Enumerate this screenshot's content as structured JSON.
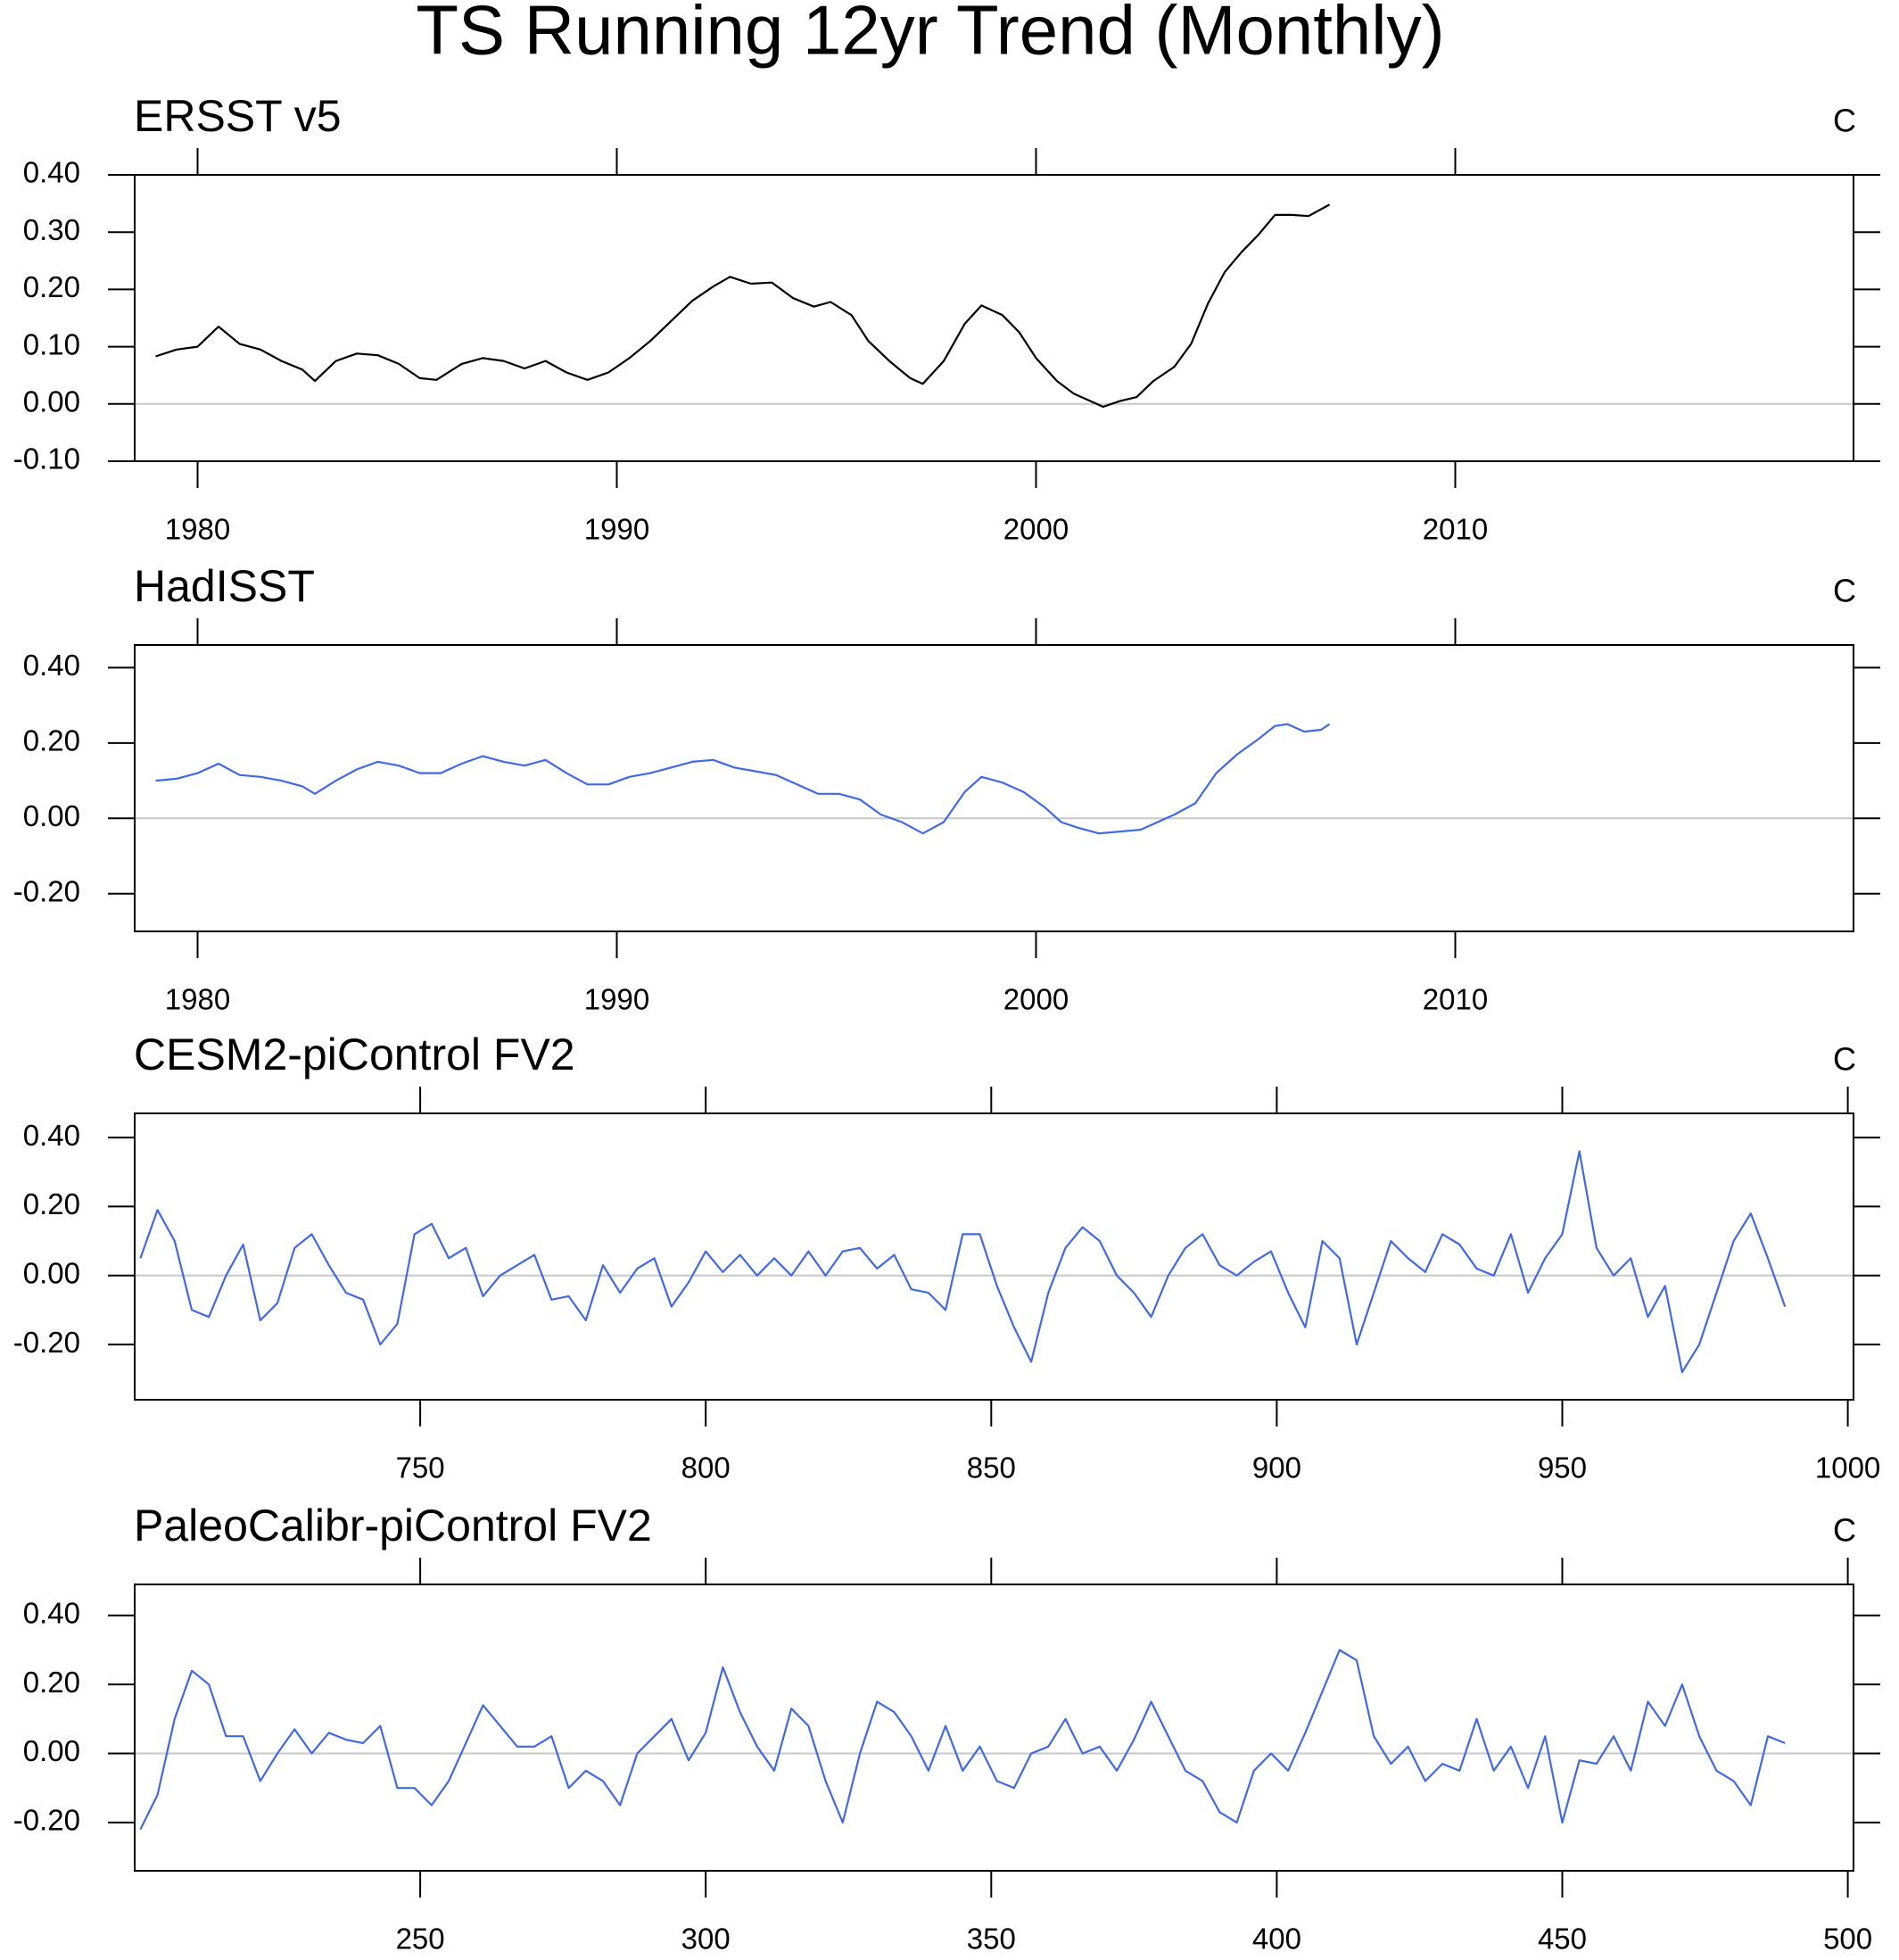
{
  "title": "TS Running 12yr Trend (Monthly)",
  "chart_data": [
    {
      "type": "line",
      "title": "ERSST v5",
      "units": "C",
      "color": "#000000",
      "zero_line": true,
      "xlim": [
        1978.5,
        2019.5
      ],
      "xticks": [
        1980,
        1990,
        2000,
        2010
      ],
      "ylim": [
        -0.1,
        0.4
      ],
      "yticks": [
        {
          "value": -0.1,
          "label": "-0.10"
        },
        {
          "value": 0,
          "label": "0.00"
        },
        {
          "value": 0.1,
          "label": "0.10"
        },
        {
          "value": 0.2,
          "label": "0.20"
        },
        {
          "value": 0.3,
          "label": "0.30"
        },
        {
          "value": 0.4,
          "label": "0.40"
        }
      ],
      "x": [
        1979.0,
        1979.5,
        1980.0,
        1980.5,
        1981.0,
        1981.5,
        1982.0,
        1982.5,
        1982.8,
        1983.3,
        1983.8,
        1984.3,
        1984.8,
        1985.3,
        1985.7,
        1986.3,
        1986.8,
        1987.3,
        1987.8,
        1988.3,
        1988.8,
        1989.3,
        1989.8,
        1990.3,
        1990.8,
        1991.3,
        1991.8,
        1992.3,
        1992.7,
        1993.2,
        1993.7,
        1994.2,
        1994.7,
        1995.1,
        1995.6,
        1996.0,
        1996.5,
        1997.0,
        1997.3,
        1997.8,
        1998.3,
        1998.7,
        1999.2,
        1999.6,
        2000.0,
        2000.5,
        2000.9,
        2001.3,
        2001.6,
        2002.0,
        2002.4,
        2002.8,
        2003.3,
        2003.7,
        2004.1,
        2004.5,
        2004.9,
        2005.3,
        2005.7,
        2006.1,
        2006.5,
        2007.0
      ],
      "values": [
        0.083,
        0.095,
        0.1,
        0.135,
        0.105,
        0.095,
        0.075,
        0.06,
        0.04,
        0.075,
        0.088,
        0.085,
        0.07,
        0.045,
        0.042,
        0.07,
        0.08,
        0.075,
        0.062,
        0.075,
        0.055,
        0.042,
        0.055,
        0.08,
        0.11,
        0.145,
        0.18,
        0.205,
        0.222,
        0.21,
        0.212,
        0.185,
        0.17,
        0.178,
        0.155,
        0.11,
        0.075,
        0.045,
        0.035,
        0.075,
        0.14,
        0.172,
        0.155,
        0.125,
        0.08,
        0.04,
        0.018,
        0.005,
        -0.005,
        0.005,
        0.012,
        0.04,
        0.065,
        0.105,
        0.175,
        0.23,
        0.265,
        0.295,
        0.33,
        0.33,
        0.328,
        0.348
      ]
    },
    {
      "type": "line",
      "title": "HadISST",
      "units": "C",
      "color": "#4169e1",
      "zero_line": true,
      "xlim": [
        1978.5,
        2019.5
      ],
      "xticks": [
        1980,
        1990,
        2000,
        2010
      ],
      "ylim": [
        -0.3,
        0.46
      ],
      "yticks": [
        {
          "value": -0.2,
          "label": "-0.20"
        },
        {
          "value": 0,
          "label": "0.00"
        },
        {
          "value": 0.2,
          "label": "0.20"
        },
        {
          "value": 0.4,
          "label": "0.40"
        }
      ],
      "x": [
        1979.0,
        1979.5,
        1980.0,
        1980.5,
        1981.0,
        1981.5,
        1982.0,
        1982.5,
        1982.8,
        1983.3,
        1983.8,
        1984.3,
        1984.8,
        1985.3,
        1985.8,
        1986.3,
        1986.8,
        1987.3,
        1987.8,
        1988.3,
        1988.8,
        1989.3,
        1989.8,
        1990.3,
        1990.8,
        1991.3,
        1991.8,
        1992.3,
        1992.8,
        1993.3,
        1993.8,
        1994.3,
        1994.8,
        1995.3,
        1995.8,
        1996.3,
        1996.8,
        1997.3,
        1997.8,
        1998.3,
        1998.7,
        1999.2,
        1999.7,
        2000.2,
        2000.6,
        2001.0,
        2001.5,
        2002.0,
        2002.5,
        2002.9,
        2003.3,
        2003.8,
        2004.3,
        2004.8,
        2005.3,
        2005.7,
        2006.0,
        2006.4,
        2006.8,
        2007.0
      ],
      "values": [
        0.1,
        0.105,
        0.12,
        0.145,
        0.115,
        0.11,
        0.1,
        0.085,
        0.065,
        0.1,
        0.13,
        0.15,
        0.14,
        0.12,
        0.12,
        0.145,
        0.165,
        0.15,
        0.14,
        0.155,
        0.12,
        0.09,
        0.09,
        0.11,
        0.12,
        0.135,
        0.15,
        0.155,
        0.135,
        0.125,
        0.115,
        0.09,
        0.065,
        0.065,
        0.05,
        0.01,
        -0.01,
        -0.04,
        -0.01,
        0.07,
        0.11,
        0.095,
        0.07,
        0.03,
        -0.01,
        -0.025,
        -0.04,
        -0.035,
        -0.03,
        -0.01,
        0.01,
        0.04,
        0.12,
        0.17,
        0.21,
        0.245,
        0.25,
        0.23,
        0.235,
        0.25
      ]
    },
    {
      "type": "line",
      "title": "CESM2-piControl FV2",
      "units": "C",
      "color": "#4169e1",
      "zero_line": true,
      "xlim": [
        700,
        1001
      ],
      "xticks": [
        750,
        800,
        850,
        900,
        950,
        1000
      ],
      "ylim": [
        -0.36,
        0.47
      ],
      "yticks": [
        {
          "value": -0.2,
          "label": "-0.20"
        },
        {
          "value": 0,
          "label": "0.00"
        },
        {
          "value": 0.2,
          "label": "0.20"
        },
        {
          "value": 0.4,
          "label": "0.40"
        }
      ],
      "x": [
        701,
        704,
        707,
        710,
        713,
        716,
        719,
        722,
        725,
        728,
        731,
        734,
        737,
        740,
        743,
        746,
        749,
        752,
        755,
        758,
        761,
        764,
        767,
        770,
        773,
        776,
        779,
        782,
        785,
        788,
        791,
        794,
        797,
        800,
        803,
        806,
        809,
        812,
        815,
        818,
        821,
        824,
        827,
        830,
        833,
        836,
        839,
        842,
        845,
        848,
        851,
        854,
        857,
        860,
        863,
        866,
        869,
        872,
        875,
        878,
        881,
        884,
        887,
        890,
        893,
        896,
        899,
        902,
        905,
        908,
        911,
        914,
        917,
        920,
        923,
        926,
        929,
        932,
        935,
        938,
        941,
        944,
        947,
        950,
        953,
        956,
        959,
        962,
        965,
        968,
        971,
        974,
        977,
        980,
        983,
        986,
        989
      ],
      "values": [
        0.05,
        0.19,
        0.1,
        -0.1,
        -0.12,
        0.0,
        0.09,
        -0.13,
        -0.08,
        0.08,
        0.12,
        0.03,
        -0.05,
        -0.07,
        -0.2,
        -0.14,
        0.12,
        0.15,
        0.05,
        0.08,
        -0.06,
        0.0,
        0.03,
        0.06,
        -0.07,
        -0.06,
        -0.13,
        0.03,
        -0.05,
        0.02,
        0.05,
        -0.09,
        -0.02,
        0.07,
        0.01,
        0.06,
        0.0,
        0.05,
        0.0,
        0.07,
        0.0,
        0.07,
        0.08,
        0.02,
        0.06,
        -0.04,
        -0.05,
        -0.1,
        0.12,
        0.12,
        -0.03,
        -0.15,
        -0.25,
        -0.05,
        0.08,
        0.14,
        0.1,
        0.0,
        -0.05,
        -0.12,
        0.0,
        0.08,
        0.12,
        0.03,
        0.0,
        0.04,
        0.07,
        -0.05,
        -0.15,
        0.1,
        0.05,
        -0.2,
        -0.05,
        0.1,
        0.05,
        0.01,
        0.12,
        0.09,
        0.02,
        0.0,
        0.12,
        -0.05,
        0.05,
        0.12,
        0.36,
        0.08,
        0.0,
        0.05,
        -0.12,
        -0.03,
        -0.28,
        -0.2,
        -0.05,
        0.1,
        0.18,
        0.05,
        -0.09
      ]
    },
    {
      "type": "line",
      "title": "PaleoCalibr-piControl FV2",
      "units": "C",
      "color": "#4169e1",
      "zero_line": true,
      "xlim": [
        200,
        501
      ],
      "xticks": [
        250,
        300,
        350,
        400,
        450,
        500
      ],
      "ylim": [
        -0.34,
        0.49
      ],
      "yticks": [
        {
          "value": -0.2,
          "label": "-0.20"
        },
        {
          "value": 0,
          "label": "0.00"
        },
        {
          "value": 0.2,
          "label": "0.20"
        },
        {
          "value": 0.4,
          "label": "0.40"
        }
      ],
      "x": [
        201,
        204,
        207,
        210,
        213,
        216,
        219,
        222,
        225,
        228,
        231,
        234,
        237,
        240,
        243,
        246,
        249,
        252,
        255,
        258,
        261,
        264,
        267,
        270,
        273,
        276,
        279,
        282,
        285,
        288,
        291,
        294,
        297,
        300,
        303,
        306,
        309,
        312,
        315,
        318,
        321,
        324,
        327,
        330,
        333,
        336,
        339,
        342,
        345,
        348,
        351,
        354,
        357,
        360,
        363,
        366,
        369,
        372,
        375,
        378,
        381,
        384,
        387,
        390,
        393,
        396,
        399,
        402,
        405,
        408,
        411,
        414,
        417,
        420,
        423,
        426,
        429,
        432,
        435,
        438,
        441,
        444,
        447,
        450,
        453,
        456,
        459,
        462,
        465,
        468,
        471,
        474,
        477,
        480,
        483,
        486,
        489
      ],
      "values": [
        -0.22,
        -0.12,
        0.1,
        0.24,
        0.2,
        0.05,
        0.05,
        -0.08,
        0.0,
        0.07,
        0.0,
        0.06,
        0.04,
        0.03,
        0.08,
        -0.1,
        -0.1,
        -0.15,
        -0.08,
        0.03,
        0.14,
        0.08,
        0.02,
        0.02,
        0.05,
        -0.1,
        -0.05,
        -0.08,
        -0.15,
        0.0,
        0.05,
        0.1,
        -0.02,
        0.06,
        0.25,
        0.12,
        0.02,
        -0.05,
        0.13,
        0.08,
        -0.08,
        -0.2,
        0.0,
        0.15,
        0.12,
        0.05,
        -0.05,
        0.08,
        -0.05,
        0.02,
        -0.08,
        -0.1,
        0.0,
        0.02,
        0.1,
        0.0,
        0.02,
        -0.05,
        0.04,
        0.15,
        0.05,
        -0.05,
        -0.08,
        -0.17,
        -0.2,
        -0.05,
        0.0,
        -0.05,
        0.06,
        0.18,
        0.3,
        0.27,
        0.05,
        -0.03,
        0.02,
        -0.08,
        -0.03,
        -0.05,
        0.1,
        -0.05,
        0.02,
        -0.1,
        0.05,
        -0.2,
        -0.02,
        -0.03,
        0.05,
        -0.05,
        0.15,
        0.08,
        0.2,
        0.05,
        -0.05,
        -0.08,
        -0.15,
        0.05,
        0.03
      ]
    }
  ]
}
